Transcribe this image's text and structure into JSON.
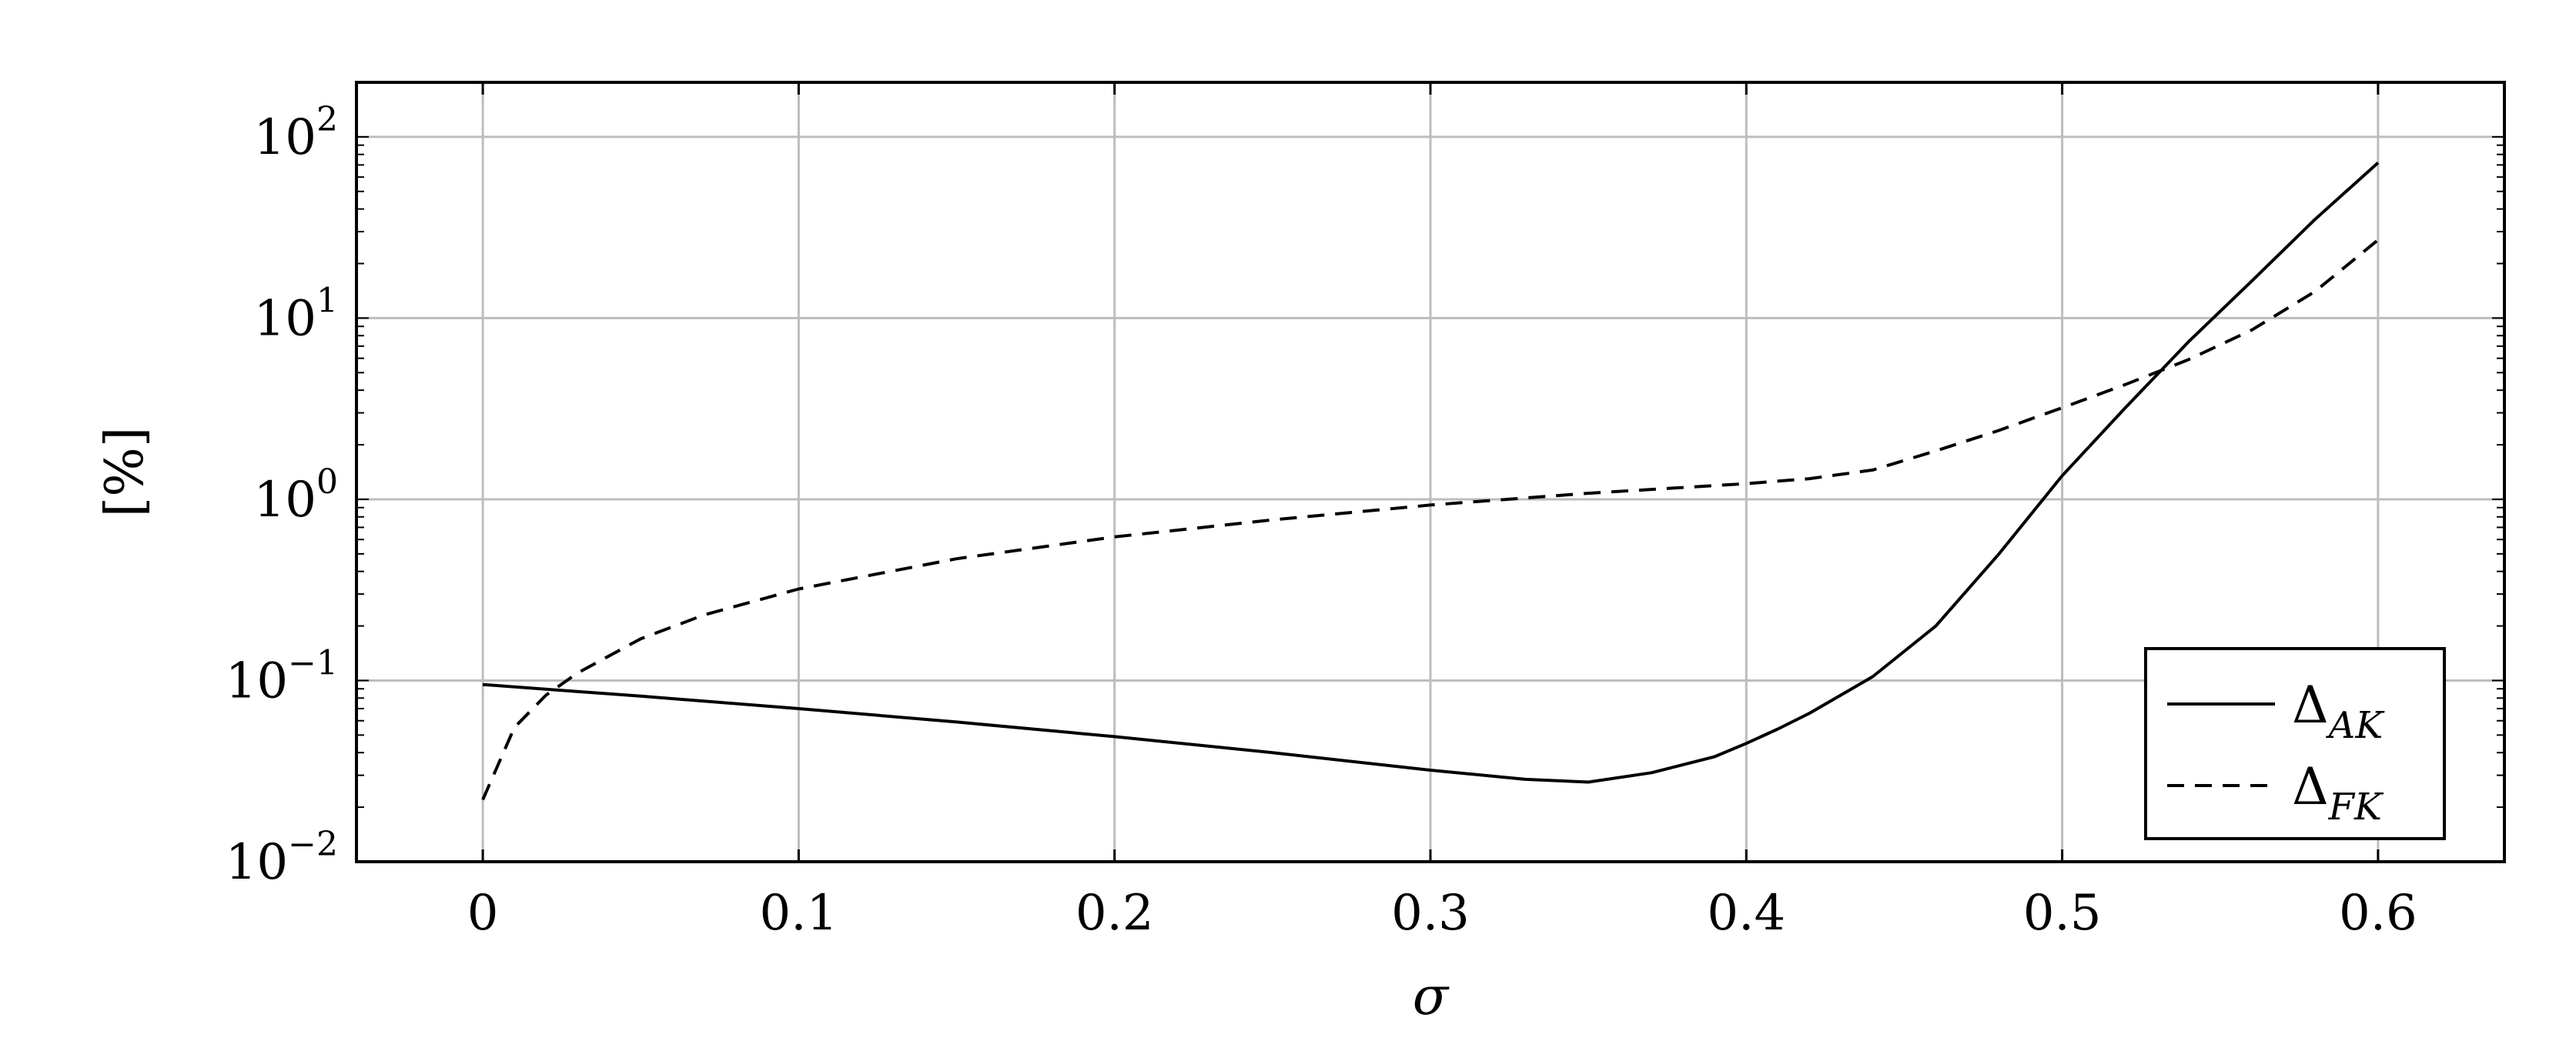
{
  "chart_data": {
    "type": "line",
    "title": "",
    "xlabel": "σ",
    "ylabel": "[%]",
    "xlim": [
      -0.04,
      0.64
    ],
    "ylim": [
      0.01,
      200
    ],
    "yscale": "log",
    "grid": true,
    "legend_position": "bottom-right",
    "x_ticks": [
      {
        "value": 0,
        "label": "0"
      },
      {
        "value": 0.1,
        "label": "0.1"
      },
      {
        "value": 0.2,
        "label": "0.2"
      },
      {
        "value": 0.3,
        "label": "0.3"
      },
      {
        "value": 0.4,
        "label": "0.4"
      },
      {
        "value": 0.5,
        "label": "0.5"
      },
      {
        "value": 0.6,
        "label": "0.6"
      }
    ],
    "y_ticks": [
      {
        "value": 0.01,
        "base": "10",
        "exp": "−2"
      },
      {
        "value": 0.1,
        "base": "10",
        "exp": "−1"
      },
      {
        "value": 1,
        "base": "10",
        "exp": "0"
      },
      {
        "value": 10,
        "base": "10",
        "exp": "1"
      },
      {
        "value": 100,
        "base": "10",
        "exp": "2"
      }
    ],
    "series": [
      {
        "name": "Δ",
        "subscript": "AK",
        "style": "solid",
        "color": "#000000",
        "x": [
          0,
          0.05,
          0.1,
          0.15,
          0.2,
          0.25,
          0.3,
          0.33,
          0.35,
          0.37,
          0.39,
          0.4,
          0.41,
          0.42,
          0.44,
          0.46,
          0.48,
          0.5,
          0.52,
          0.54,
          0.56,
          0.58,
          0.6
        ],
        "y": [
          0.095,
          0.082,
          0.07,
          0.059,
          0.049,
          0.04,
          0.032,
          0.0285,
          0.0275,
          0.031,
          0.038,
          0.045,
          0.054,
          0.066,
          0.105,
          0.2,
          0.5,
          1.35,
          3.2,
          7.4,
          16,
          35,
          72
        ]
      },
      {
        "name": "Δ",
        "subscript": "FK",
        "style": "dashed",
        "color": "#000000",
        "x": [
          0,
          0.01,
          0.02,
          0.03,
          0.05,
          0.07,
          0.1,
          0.15,
          0.2,
          0.25,
          0.3,
          0.35,
          0.4,
          0.42,
          0.44,
          0.46,
          0.48,
          0.5,
          0.52,
          0.54,
          0.56,
          0.58,
          0.6
        ],
        "y": [
          0.022,
          0.055,
          0.083,
          0.11,
          0.17,
          0.23,
          0.32,
          0.47,
          0.62,
          0.77,
          0.93,
          1.08,
          1.22,
          1.3,
          1.45,
          1.85,
          2.4,
          3.2,
          4.3,
          5.9,
          8.6,
          14,
          27
        ]
      }
    ]
  }
}
